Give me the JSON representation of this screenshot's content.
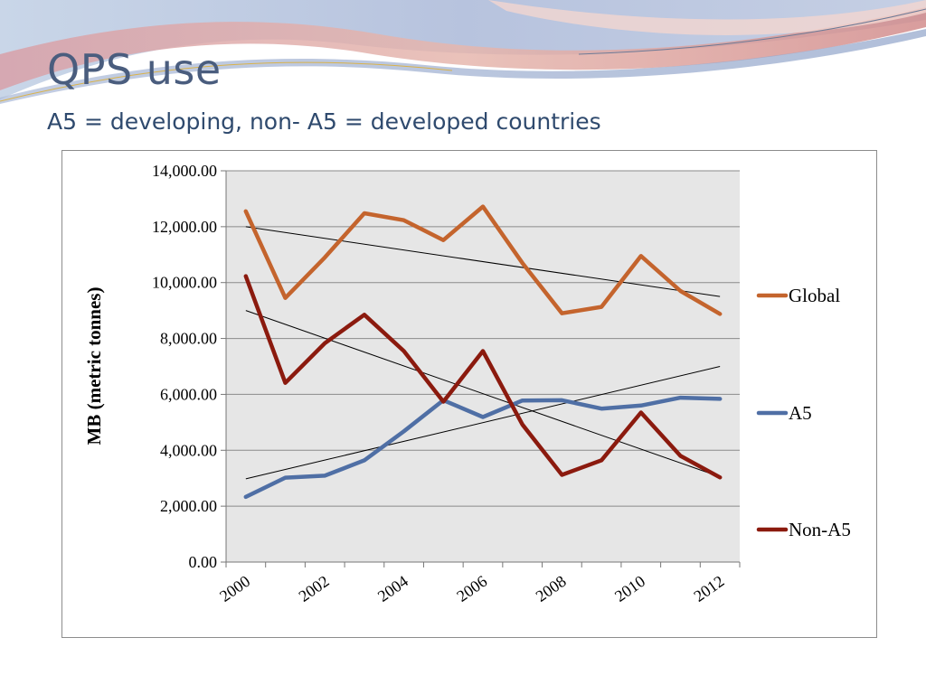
{
  "slide": {
    "title": "QPS use",
    "subtitle": "A5 = developing, non- A5 = developed countries"
  },
  "chart_data": {
    "type": "line",
    "title": "",
    "xlabel": "",
    "ylabel": "MB (metric tonnes)",
    "x": [
      2000,
      2001,
      2002,
      2003,
      2004,
      2005,
      2006,
      2007,
      2008,
      2009,
      2010,
      2011,
      2012
    ],
    "x_tick_labels": [
      "2000",
      "2002",
      "2004",
      "2006",
      "2008",
      "2010",
      "2012"
    ],
    "ylim": [
      0,
      14000
    ],
    "y_tick_labels": [
      "0.00",
      "2,000.00",
      "4,000.00",
      "6,000.00",
      "8,000.00",
      "10,000.00",
      "12,000.00",
      "14,000.00"
    ],
    "grid": true,
    "legend_position": "right",
    "series": [
      {
        "name": "Global",
        "color": "#c4642d",
        "values": [
          12550,
          9450,
          10900,
          12480,
          12230,
          11520,
          12720,
          10700,
          8900,
          9130,
          10950,
          9700,
          8880
        ]
      },
      {
        "name": "A5",
        "color": "#4f6fa5",
        "values": [
          2330,
          3020,
          3090,
          3640,
          4680,
          5790,
          5190,
          5780,
          5790,
          5490,
          5600,
          5880,
          5840
        ]
      },
      {
        "name": "Non-A5",
        "color": "#8b1a0e",
        "values": [
          10230,
          6410,
          7830,
          8850,
          7550,
          5740,
          7550,
          4920,
          3120,
          3640,
          5350,
          3800,
          3030
        ]
      }
    ],
    "trendlines": [
      {
        "series": "Global",
        "color": "#000000",
        "values": [
          12000,
          9500
        ]
      },
      {
        "series": "A5",
        "color": "#000000",
        "values": [
          2980,
          7000
        ]
      },
      {
        "series": "Non-A5",
        "color": "#000000",
        "values": [
          9000,
          3050
        ]
      }
    ]
  }
}
